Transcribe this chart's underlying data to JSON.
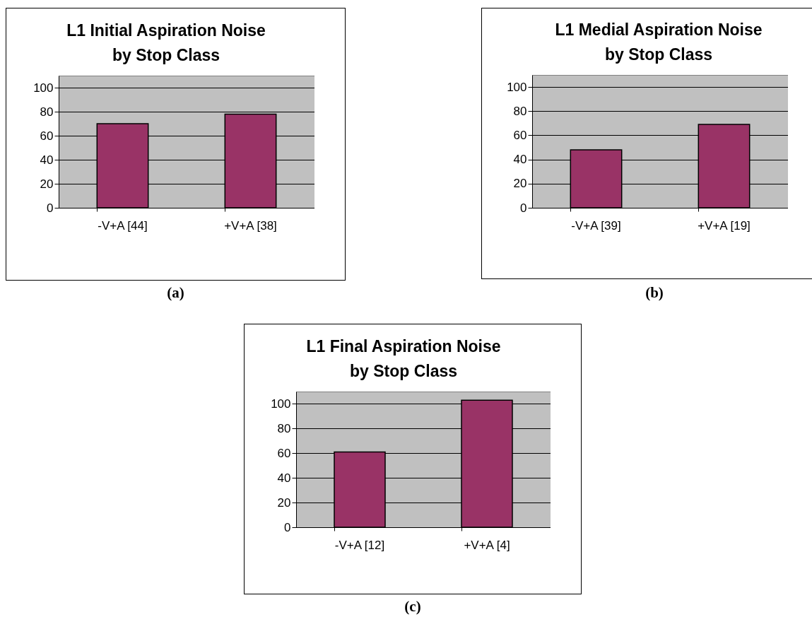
{
  "chart_data": [
    {
      "type": "bar",
      "title": "L1 Initial Aspiration Noise\nby Stop Class",
      "categories": [
        "-V+A [44]",
        "+V+A [38]"
      ],
      "values": [
        70,
        78
      ],
      "color": "#993366",
      "ylim": [
        0,
        110
      ],
      "yticks": [
        0,
        20,
        40,
        60,
        80,
        100
      ],
      "grid": "y",
      "annotations": [
        "(a)"
      ]
    },
    {
      "type": "bar",
      "title": "L1 Medial Aspiration Noise\nby Stop Class",
      "categories": [
        "-V+A [39]",
        "+V+A [19]"
      ],
      "values": [
        48,
        69
      ],
      "color": "#993366",
      "ylim": [
        0,
        110
      ],
      "yticks": [
        0,
        20,
        40,
        60,
        80,
        100
      ],
      "grid": "y",
      "annotations": [
        "(b)"
      ]
    },
    {
      "type": "bar",
      "title": "L1 Final Aspiration Noise\nby Stop Class",
      "categories": [
        "-V+A [12]",
        "+V+A [4]"
      ],
      "values": [
        61,
        103
      ],
      "color": "#993366",
      "ylim": [
        0,
        110
      ],
      "yticks": [
        0,
        20,
        40,
        60,
        80,
        100
      ],
      "grid": "y",
      "annotations": [
        "(c)"
      ]
    }
  ]
}
